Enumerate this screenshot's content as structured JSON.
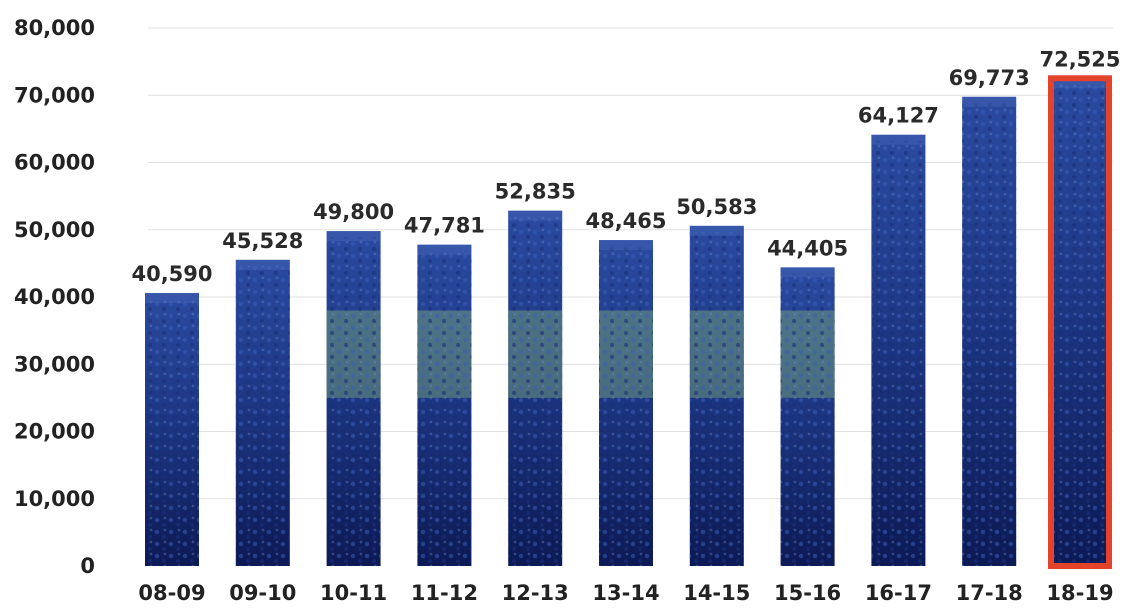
{
  "chart_data": {
    "type": "bar",
    "categories": [
      "08-09",
      "09-10",
      "10-11",
      "11-12",
      "12-13",
      "13-14",
      "14-15",
      "15-16",
      "16-17",
      "17-18",
      "18-19"
    ],
    "values": [
      40590,
      45528,
      49800,
      47781,
      52835,
      48465,
      50583,
      44405,
      64127,
      69773,
      72525
    ],
    "value_labels": [
      "40,590",
      "45,528",
      "49,800",
      "47,781",
      "52,835",
      "48,465",
      "50,583",
      "44,405",
      "64,127",
      "69,773",
      "72,525"
    ],
    "y_ticks": [
      "0",
      "10,000",
      "20,000",
      "30,000",
      "40,000",
      "50,000",
      "60,000",
      "70,000",
      "80,000"
    ],
    "ylim": [
      0,
      80000
    ],
    "grid": true,
    "highlight_index": 10,
    "title": "",
    "xlabel": "",
    "ylabel": "",
    "colors": {
      "bar_top": "#1d3784",
      "bar_bottom": "#0e1d5a",
      "highlight_border": "#e2432a",
      "court": "#6d9a7c",
      "crowd": "#2c50a8"
    }
  }
}
